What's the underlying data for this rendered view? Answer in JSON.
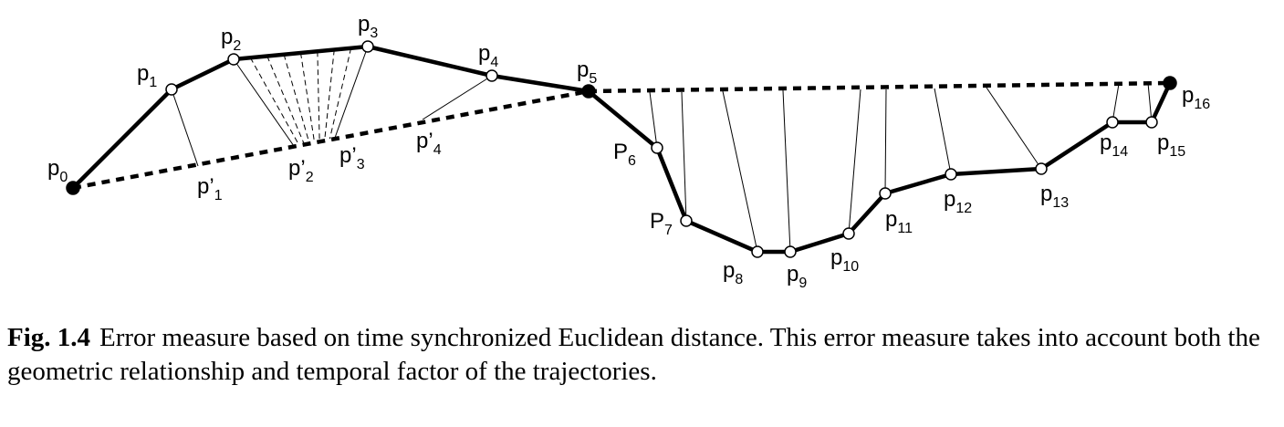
{
  "points": [
    {
      "id": "p0",
      "base": "p",
      "sub": "0",
      "kind": "filled"
    },
    {
      "id": "p1",
      "base": "p",
      "sub": "1",
      "kind": "open"
    },
    {
      "id": "p2",
      "base": "p",
      "sub": "2",
      "kind": "open"
    },
    {
      "id": "p3",
      "base": "p",
      "sub": "3",
      "kind": "open"
    },
    {
      "id": "p4",
      "base": "p",
      "sub": "4",
      "kind": "open"
    },
    {
      "id": "p5",
      "base": "p",
      "sub": "5",
      "kind": "filled"
    },
    {
      "id": "p6",
      "base": "P",
      "sub": "6",
      "kind": "open"
    },
    {
      "id": "p7",
      "base": "P",
      "sub": "7",
      "kind": "open"
    },
    {
      "id": "p8",
      "base": "p",
      "sub": "8",
      "kind": "open"
    },
    {
      "id": "p9",
      "base": "p",
      "sub": "9",
      "kind": "open"
    },
    {
      "id": "p10",
      "base": "p",
      "sub": "10",
      "kind": "open"
    },
    {
      "id": "p11",
      "base": "p",
      "sub": "11",
      "kind": "open"
    },
    {
      "id": "p12",
      "base": "p",
      "sub": "12",
      "kind": "open"
    },
    {
      "id": "p13",
      "base": "p",
      "sub": "13",
      "kind": "open"
    },
    {
      "id": "p14",
      "base": "p",
      "sub": "14",
      "kind": "open"
    },
    {
      "id": "p15",
      "base": "p",
      "sub": "15",
      "kind": "open"
    },
    {
      "id": "p16",
      "base": "p",
      "sub": "16",
      "kind": "filled"
    }
  ],
  "projected_points": [
    {
      "id": "pp1",
      "base": "p’",
      "sub": "1"
    },
    {
      "id": "pp2",
      "base": "p’",
      "sub": "2"
    },
    {
      "id": "pp3",
      "base": "p’",
      "sub": "3"
    },
    {
      "id": "pp4",
      "base": "p’",
      "sub": "4"
    }
  ],
  "caption": {
    "label": "Fig. 1.4",
    "text": "Error measure based on time synchronized Euclidean distance. This error measure takes into account both the geometric relationship and temporal factor of the trajectories."
  }
}
